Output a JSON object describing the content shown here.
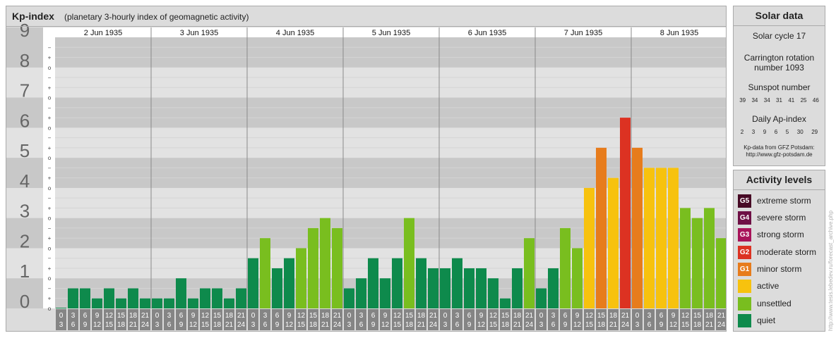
{
  "header": {
    "title": "Kp-index",
    "subtitle": "(planetary 3-hourly index of geomagnetic activity)"
  },
  "chart_data": {
    "type": "bar",
    "title": "Kp-index",
    "subtitle": "(planetary 3-hourly index of geomagnetic activity)",
    "ylim": [
      0,
      9
    ],
    "y_ticks": [
      "0",
      "1",
      "2",
      "3",
      "4",
      "5",
      "6",
      "7",
      "8",
      "9"
    ],
    "y_sub_ticks": [
      "o",
      "+",
      "−"
    ],
    "days": [
      "2 Jun 1935",
      "3 Jun 1935",
      "4 Jun 1935",
      "5 Jun 1935",
      "6 Jun 1935",
      "7 Jun 1935",
      "8 Jun 1935"
    ],
    "interval_top": [
      "0",
      "3",
      "6",
      "9",
      "12",
      "15",
      "18",
      "21"
    ],
    "interval_bottom": [
      "3",
      "6",
      "9",
      "12",
      "15",
      "18",
      "21",
      "24"
    ],
    "values": [
      [
        0.0,
        0.667,
        0.667,
        0.333,
        0.667,
        0.333,
        0.667,
        0.333
      ],
      [
        0.333,
        0.333,
        1.0,
        0.333,
        0.667,
        0.667,
        0.333,
        0.667
      ],
      [
        1.667,
        2.333,
        1.333,
        1.667,
        2.0,
        2.667,
        3.0,
        2.667
      ],
      [
        0.667,
        1.0,
        1.667,
        1.0,
        1.667,
        3.0,
        1.667,
        1.333
      ],
      [
        1.333,
        1.667,
        1.333,
        1.333,
        1.0,
        0.333,
        1.333,
        2.333
      ],
      [
        0.667,
        1.333,
        2.667,
        2.0,
        4.0,
        5.333,
        4.333,
        6.333
      ],
      [
        5.333,
        4.667,
        4.667,
        4.667,
        3.333,
        3.0,
        3.333,
        2.333
      ]
    ],
    "colors": {
      "quiet": "#0e8a4c",
      "unsettled": "#79be1f",
      "active": "#f7c20e",
      "minor_storm": "#e77c1c",
      "moderate_storm": "#dc3222",
      "strong_storm": "#a8145a",
      "severe_storm": "#6e1045",
      "extreme_storm": "#470a25"
    },
    "grid": true
  },
  "solar": {
    "title": "Solar data",
    "cycle": "Solar cycle 17",
    "carrington_line1": "Carrington rotation",
    "carrington_line2": "number 1093",
    "sunspot_label": "Sunspot number",
    "sunspot_values": [
      "39",
      "34",
      "34",
      "31",
      "41",
      "25",
      "46"
    ],
    "ap_label": "Daily Ap-index",
    "ap_values": [
      "2",
      "3",
      "9",
      "6",
      "5",
      "30",
      "29"
    ],
    "credit_line1": "Kp-data from GFZ Potsdam:",
    "credit_line2": "http://www.gfz-potsdam.de"
  },
  "activity": {
    "title": "Activity levels",
    "items": [
      {
        "code": "G5",
        "label": "extreme storm",
        "color": "#470a25"
      },
      {
        "code": "G4",
        "label": "severe storm",
        "color": "#6e1045"
      },
      {
        "code": "G3",
        "label": "strong storm",
        "color": "#a8145a"
      },
      {
        "code": "G2",
        "label": "moderate storm",
        "color": "#dc3222"
      },
      {
        "code": "G1",
        "label": "minor storm",
        "color": "#e77c1c"
      },
      {
        "code": "",
        "label": "active",
        "color": "#f7c20e"
      },
      {
        "code": "",
        "label": "unsettled",
        "color": "#79be1f"
      },
      {
        "code": "",
        "label": "quiet",
        "color": "#0e8a4c"
      }
    ]
  },
  "watermark": "http://www.tesis.lebedev.ru/forecast_archive.php"
}
